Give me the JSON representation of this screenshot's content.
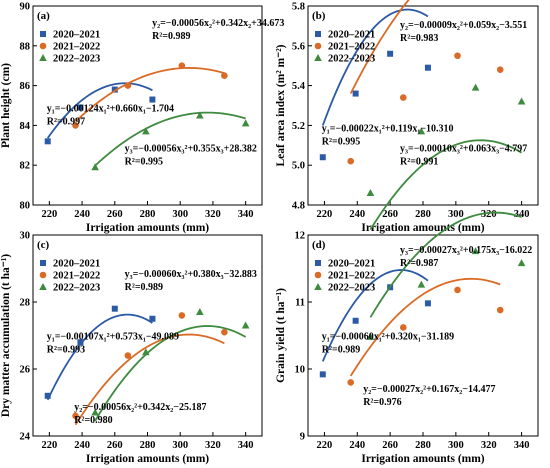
{
  "series_styles": [
    {
      "name": "2020–2021",
      "color": "#2b5aa6",
      "marker": "square"
    },
    {
      "name": "2021–2022",
      "color": "#d96b26",
      "marker": "circle"
    },
    {
      "name": "2022–2023",
      "color": "#3e8a3e",
      "marker": "triangle"
    }
  ],
  "chart_data": [
    {
      "type": "scatter",
      "panel_label": "(a)",
      "xlabel": "Irrigation amounts (mm)",
      "ylabel": "Plant height (cm)",
      "xlim": [
        210,
        350
      ],
      "ylim": [
        80,
        90
      ],
      "xticks": [
        220,
        240,
        260,
        280,
        300,
        320,
        340
      ],
      "yticks": [
        80,
        82,
        84,
        86,
        88,
        90
      ],
      "legend_position": "top-left",
      "series": [
        {
          "name": "2020–2021",
          "x": [
            219,
            239,
            260,
            283
          ],
          "y": [
            83.2,
            84.9,
            85.8,
            85.3
          ],
          "fit": [
            -0.00124,
            0.66,
            -1.704
          ],
          "fit_range": [
            219,
            283
          ]
        },
        {
          "name": "2021–2022",
          "x": [
            236,
            268,
            301,
            327
          ],
          "y": [
            84.0,
            86.0,
            87.0,
            86.5
          ],
          "fit": [
            -0.00056,
            0.342,
            34.673
          ],
          "fit_range": [
            236,
            327
          ]
        },
        {
          "name": "2022–2023",
          "x": [
            248,
            279,
            312,
            340
          ],
          "y": [
            81.9,
            83.7,
            84.5,
            84.1
          ],
          "fit": [
            -0.00056,
            0.355,
            28.382
          ],
          "fit_range": [
            248,
            340
          ]
        }
      ],
      "annotations": [
        {
          "line1": "y₂=−0.00056x₂²+0.342x₂+34.673",
          "line2": "R²=0.989"
        },
        {
          "line1": "y₁=−0.00124x₁²+0.660x₁−1.704",
          "line2": "R²=0.997"
        },
        {
          "line1": "y₃=−0.00056x₃²+0.355x₃+28.382",
          "line2": "R²=0.995"
        }
      ]
    },
    {
      "type": "scatter",
      "panel_label": "(b)",
      "xlabel": "Irrigation amounts (mm)",
      "ylabel": "Leaf area index (m² m⁻²)",
      "xlim": [
        210,
        350
      ],
      "ylim": [
        4.8,
        5.8
      ],
      "xticks": [
        220,
        240,
        260,
        280,
        300,
        320,
        340
      ],
      "yticks": [
        4.8,
        5.0,
        5.2,
        5.4,
        5.6,
        5.8
      ],
      "legend_position": "top-left",
      "series": [
        {
          "name": "2020–2021",
          "x": [
            219,
            239,
            260,
            283
          ],
          "y": [
            5.04,
            5.36,
            5.56,
            5.49
          ],
          "fit": [
            -0.00022,
            0.119,
            -10.31
          ],
          "fit_range": [
            219,
            283
          ]
        },
        {
          "name": "2021–2022",
          "x": [
            236,
            268,
            301,
            327
          ],
          "y": [
            5.02,
            5.34,
            5.55,
            5.48
          ],
          "fit": [
            -9e-05,
            0.059,
            -3.551
          ],
          "fit_range": [
            236,
            327
          ]
        },
        {
          "name": "2022–2023",
          "x": [
            248,
            279,
            312,
            340
          ],
          "y": [
            4.86,
            5.17,
            5.39,
            5.32
          ],
          "fit": [
            -0.0001,
            0.063,
            -4.797
          ],
          "fit_range": [
            248,
            340
          ]
        }
      ],
      "annotations": [
        {
          "line1": "y₂=−0.00009x₂²+0.059x₂−3.551",
          "line2": "R²=0.983"
        },
        {
          "line1": "y₁=−0.00022x₁²+0.119x₁−10.310",
          "line2": "R²=0.995"
        },
        {
          "line1": "y₃=−0.00010x₃²+0.063x₃−4.797",
          "line2": "R²=0.991"
        }
      ]
    },
    {
      "type": "scatter",
      "panel_label": "(c)",
      "xlabel": "Irrigation amounts (mm)",
      "ylabel": "Dry matter accumulation (t ha⁻¹)",
      "xlim": [
        210,
        350
      ],
      "ylim": [
        24,
        30
      ],
      "xticks": [
        220,
        240,
        260,
        280,
        300,
        320,
        340
      ],
      "yticks": [
        24,
        26,
        28,
        30
      ],
      "legend_position": "top-left",
      "series": [
        {
          "name": "2020–2021",
          "x": [
            219,
            239,
            260,
            283
          ],
          "y": [
            25.2,
            26.8,
            27.8,
            27.5
          ],
          "fit": [
            -0.00107,
            0.573,
            -49.089
          ],
          "fit_range": [
            219,
            283
          ]
        },
        {
          "name": "2021–2022",
          "x": [
            236,
            268,
            301,
            327
          ],
          "y": [
            24.6,
            26.4,
            27.6,
            27.1
          ],
          "fit": [
            -0.00056,
            0.342,
            -25.187
          ],
          "fit_range": [
            236,
            327
          ]
        },
        {
          "name": "2022–2023",
          "x": [
            248,
            279,
            312,
            340
          ],
          "y": [
            24.7,
            26.5,
            27.7,
            27.3
          ],
          "fit": [
            -0.0006,
            0.38,
            -32.883
          ],
          "fit_range": [
            248,
            340
          ]
        }
      ],
      "annotations": [
        {
          "line1": "y₃=−0.00060x₃²+0.380x₃−32.883",
          "line2": "R²=0.989"
        },
        {
          "line1": "y₁=−0.00107x₁²+0.573x₁−49.089",
          "line2": "R²=0.993"
        },
        {
          "line1": "y₂=−0.00056x₂²+0.342x₂−25.187",
          "line2": "R²=0.980"
        }
      ]
    },
    {
      "type": "scatter",
      "panel_label": "(d)",
      "xlabel": "Irrigation amounts (mm)",
      "ylabel": "Grain yield (t ha⁻¹)",
      "xlim": [
        210,
        350
      ],
      "ylim": [
        9,
        12
      ],
      "xticks": [
        220,
        240,
        260,
        280,
        300,
        320,
        340
      ],
      "yticks": [
        9,
        10,
        11,
        12
      ],
      "legend_position": "top-left",
      "series": [
        {
          "name": "2020–2021",
          "x": [
            219,
            239,
            260,
            283
          ],
          "y": [
            9.92,
            10.72,
            11.22,
            10.98
          ],
          "fit": [
            -0.0006,
            0.32,
            -31.189
          ],
          "fit_range": [
            219,
            283
          ]
        },
        {
          "name": "2021–2022",
          "x": [
            236,
            268,
            301,
            327
          ],
          "y": [
            9.8,
            10.62,
            11.18,
            10.88
          ],
          "fit": [
            -0.00027,
            0.167,
            -14.477
          ],
          "fit_range": [
            236,
            327
          ]
        },
        {
          "name": "2022–2023",
          "x": [
            248,
            279,
            312,
            340
          ],
          "y": [
            10.48,
            11.26,
            11.76,
            11.58
          ],
          "fit": [
            -0.00027,
            0.175,
            -16.022
          ],
          "fit_range": [
            248,
            340
          ]
        }
      ],
      "annotations": [
        {
          "line1": "y₃=−0.00027x₃²+0.175x₃−16.022",
          "line2": "R²=0.987"
        },
        {
          "line1": "y₁=−0.00060x₁²+0.320x₁−31.189",
          "line2": "R²=0.989"
        },
        {
          "line1": "y₂=−0.00027x₂²+0.167x₂−14.477",
          "line2": "R²=0.976"
        }
      ]
    }
  ]
}
